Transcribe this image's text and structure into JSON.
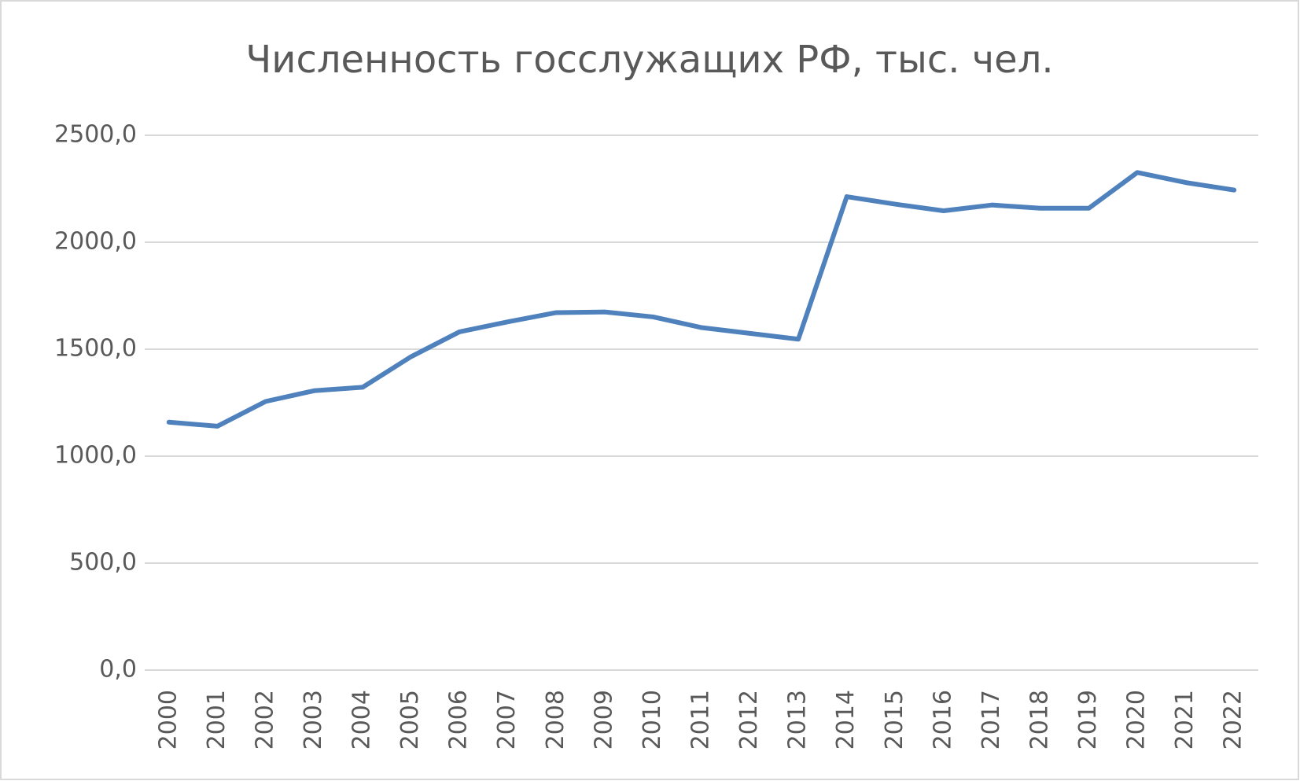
{
  "chart_data": {
    "type": "line",
    "title": "Численность госслужащих РФ, тыс. чел.",
    "categories": [
      "2000",
      "2001",
      "2002",
      "2003",
      "2004",
      "2005",
      "2006",
      "2007",
      "2008",
      "2009",
      "2010",
      "2011",
      "2012",
      "2013",
      "2014",
      "2015",
      "2016",
      "2017",
      "2018",
      "2019",
      "2020",
      "2021",
      "2022"
    ],
    "series": [
      {
        "name": "Численность госслужащих",
        "color": "#4f81bd",
        "values": [
          1159,
          1140,
          1256,
          1306,
          1322,
          1465,
          1581,
          1628,
          1671,
          1674,
          1651,
          1601,
          1574,
          1547,
          2213,
          2178,
          2147,
          2174,
          2159,
          2159,
          2326,
          2279,
          2244
        ]
      }
    ],
    "ylim": [
      0,
      2500
    ],
    "yticks": [
      {
        "value": 0,
        "label": "0,0"
      },
      {
        "value": 500,
        "label": "500,0"
      },
      {
        "value": 1000,
        "label": "1000,0"
      },
      {
        "value": 1500,
        "label": "1500,0"
      },
      {
        "value": 2000,
        "label": "2000,0"
      },
      {
        "value": 2500,
        "label": "2500,0"
      }
    ],
    "grid": true
  }
}
